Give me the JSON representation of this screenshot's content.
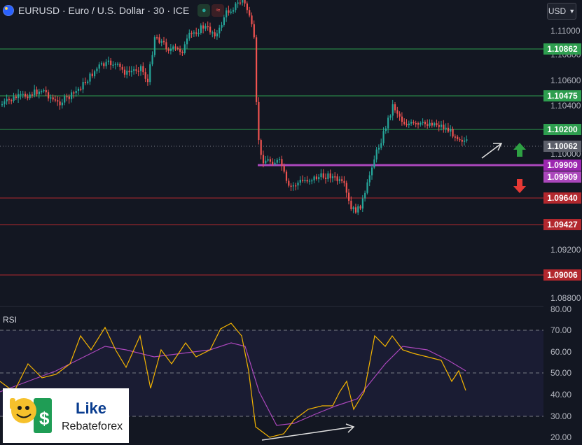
{
  "header": {
    "symbol": "EURUSD",
    "title": "EURUSD · Euro / U.S. Dollar · 30 · ICE",
    "flag_icon": "eu-us-flag-icon",
    "buy_icon": "dot-icon",
    "sell_icon": "wave-icon"
  },
  "currency_button": {
    "label": "USD",
    "icon": "chevron-down-icon"
  },
  "price_axis": {
    "ticks": [
      "1.11000",
      "1.10800",
      "1.10600",
      "1.10400",
      "1.10000",
      "1.09200",
      "1.08800"
    ]
  },
  "level_labels": [
    {
      "text": "1.10862",
      "color": "#2e9e4f"
    },
    {
      "text": "1.10475",
      "color": "#2e9e4f"
    },
    {
      "text": "1.10200",
      "color": "#2e9e4f"
    },
    {
      "text": "1.10062",
      "color": "#5d606b"
    },
    {
      "text": "1.09909",
      "color": "#9c27b0"
    },
    {
      "text": "1.09909",
      "color": "#ab47bc"
    },
    {
      "text": "1.09640",
      "color": "#b2282e"
    },
    {
      "text": "1.09427",
      "color": "#b2282e"
    },
    {
      "text": "1.09006",
      "color": "#b2282e"
    }
  ],
  "rsi": {
    "title": "RSI",
    "ticks": [
      "80.00",
      "70.00",
      "60.00",
      "50.00",
      "40.00",
      "30.00",
      "20.00"
    ]
  },
  "logo": {
    "line1": "Like",
    "line2": "Rebateforex"
  },
  "colors": {
    "background": "#131722",
    "bullish": "#26a69a",
    "bearish": "#ef5350",
    "support_line": "#2e9e4f",
    "resistance_line": "#b2282e",
    "pivot_line": "#ab47bc",
    "rsi_line": "#f4b400",
    "rsi_ma": "#ab47bc"
  },
  "annotations": {
    "up_arrow": "up-arrow-icon",
    "down_arrow": "down-arrow-icon",
    "trend_arrow": "trend-arrow-icon"
  }
}
